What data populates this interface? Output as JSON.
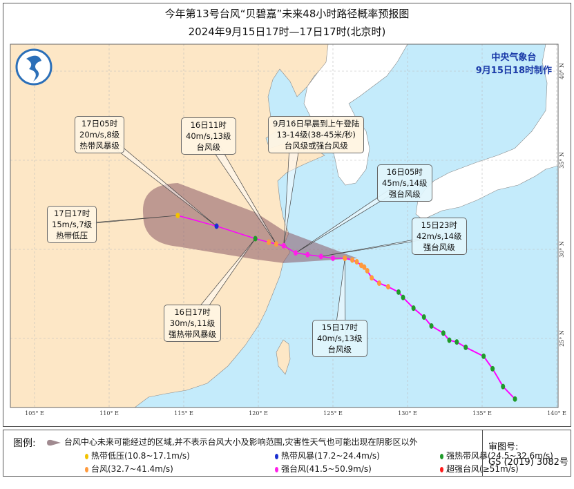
{
  "title": "今年第13号台风“贝碧嘉”未来48小时路径概率预报图",
  "subtitle": "2024年9月15日17时—17日17时(北京时)",
  "agency": {
    "name": "中央气象台",
    "issued": "9月15日18时制作"
  },
  "axes": {
    "lon_ticks": [
      "105° E",
      "110° E",
      "115° E",
      "120° E",
      "125° E",
      "130° E",
      "135° E",
      "140° E"
    ],
    "lat_ticks": [
      "40° N",
      "35° N",
      "30° N",
      "25° N"
    ]
  },
  "colors": {
    "sea": "#c4ebfb",
    "land_china": "#fde7c6",
    "land_other": "#ffffff",
    "track_line": "#ff00ff",
    "cone": "#8a5a66",
    "热带低压": "#f2c200",
    "热带风暴": "#1a2fd0",
    "强热带风暴": "#1f9a2a",
    "台风": "#ff9a3c",
    "强台风": "#ff1ee8",
    "超强台风": "#ff1a1a"
  },
  "forecast_track": [
    {
      "lon": 125.8,
      "lat": 29.5,
      "level": "台风"
    },
    {
      "lon": 125.0,
      "lat": 29.5,
      "level": "强台风"
    },
    {
      "lon": 124.2,
      "lat": 29.6,
      "level": "强台风"
    },
    {
      "lon": 123.3,
      "lat": 29.7,
      "level": "强台风"
    },
    {
      "lon": 122.5,
      "lat": 29.8,
      "level": "强台风"
    },
    {
      "lon": 121.7,
      "lat": 30.2,
      "level": "强台风"
    },
    {
      "lon": 121.2,
      "lat": 30.3,
      "level": "台风"
    },
    {
      "lon": 120.7,
      "lat": 30.4,
      "level": "台风"
    },
    {
      "lon": 119.8,
      "lat": 30.6,
      "level": "强热带风暴"
    },
    {
      "lon": 117.2,
      "lat": 31.3,
      "level": "热带风暴"
    },
    {
      "lon": 114.6,
      "lat": 31.9,
      "level": "热带低压"
    }
  ],
  "past_track": [
    {
      "lon": 125.8,
      "lat": 29.5,
      "level": "台风"
    },
    {
      "lon": 126.3,
      "lat": 29.4,
      "level": "台风"
    },
    {
      "lon": 126.6,
      "lat": 29.3,
      "level": "台风"
    },
    {
      "lon": 126.9,
      "lat": 29.1,
      "level": "台风"
    },
    {
      "lon": 127.1,
      "lat": 29.0,
      "level": "台风"
    },
    {
      "lon": 127.3,
      "lat": 28.8,
      "level": "台风"
    },
    {
      "lon": 127.6,
      "lat": 28.4,
      "level": "台风"
    },
    {
      "lon": 128.1,
      "lat": 28.1,
      "level": "台风"
    },
    {
      "lon": 128.7,
      "lat": 27.9,
      "level": "台风"
    },
    {
      "lon": 129.4,
      "lat": 27.6,
      "level": "强热带风暴"
    },
    {
      "lon": 129.7,
      "lat": 27.3,
      "level": "强热带风暴"
    },
    {
      "lon": 130.4,
      "lat": 26.7,
      "level": "强热带风暴"
    },
    {
      "lon": 131.1,
      "lat": 26.2,
      "level": "强热带风暴"
    },
    {
      "lon": 131.6,
      "lat": 25.7,
      "level": "强热带风暴"
    },
    {
      "lon": 132.4,
      "lat": 25.3,
      "level": "强热带风暴"
    },
    {
      "lon": 132.8,
      "lat": 24.9,
      "level": "强热带风暴"
    },
    {
      "lon": 133.3,
      "lat": 24.8,
      "level": "强热带风暴"
    },
    {
      "lon": 133.9,
      "lat": 24.5,
      "level": "强热带风暴"
    },
    {
      "lon": 135.1,
      "lat": 24.0,
      "level": "强热带风暴"
    },
    {
      "lon": 135.7,
      "lat": 23.3,
      "level": "强热带风暴"
    },
    {
      "lon": 136.4,
      "lat": 22.3,
      "level": "强热带风暴"
    },
    {
      "lon": 137.2,
      "lat": 21.6,
      "level": "强热带风暴"
    }
  ],
  "labels": [
    {
      "lines": [
        "17日05时",
        "20m/s,8级",
        "热带风暴级"
      ],
      "target": 9
    },
    {
      "lines": [
        "16日11时",
        "40m/s,13级",
        "台风级"
      ],
      "target": 6
    },
    {
      "lines": [
        "9月16日早晨到上午登陆",
        "13-14级(38-45米/秒)",
        "台风级或强台风级"
      ],
      "target": 5
    },
    {
      "lines": [
        "16日05时",
        "45m/s,14级",
        "强台风级"
      ],
      "target": 4
    },
    {
      "lines": [
        "15日23时",
        "42m/s,14级",
        "强台风级"
      ],
      "target": 2
    },
    {
      "lines": [
        "15日17时",
        "40m/s,13级",
        "台风级"
      ],
      "target": 0
    },
    {
      "lines": [
        "16日17时",
        "30m/s,11级",
        "强热带风暴级"
      ],
      "target": 8
    },
    {
      "lines": [
        "17日17时",
        "15m/s,7级",
        "热带低压"
      ],
      "target": 10
    }
  ],
  "legend": {
    "header": "图例:",
    "cone_text": "台风中心未来可能经过的区域,并不表示台风大小及影响范围,灾害性天气也可能出现在阴影区以外",
    "items": [
      {
        "label": "热带低压(10.8~17.1m/s)",
        "color": "#f2c200"
      },
      {
        "label": "热带风暴(17.2~24.4m/s)",
        "color": "#1a2fd0"
      },
      {
        "label": "强热带风暴(24.5~32.6m/s)",
        "color": "#1f9a2a"
      },
      {
        "label": "台风(32.7~41.4m/s)",
        "color": "#ff9a3c"
      },
      {
        "label": "强台风(41.5~50.9m/s)",
        "color": "#ff1ee8"
      },
      {
        "label": "超强台风(≥51m/s)",
        "color": "#ff1a1a"
      }
    ],
    "review_label": "审图号:",
    "review_number": "GS (2019) 3082号"
  }
}
